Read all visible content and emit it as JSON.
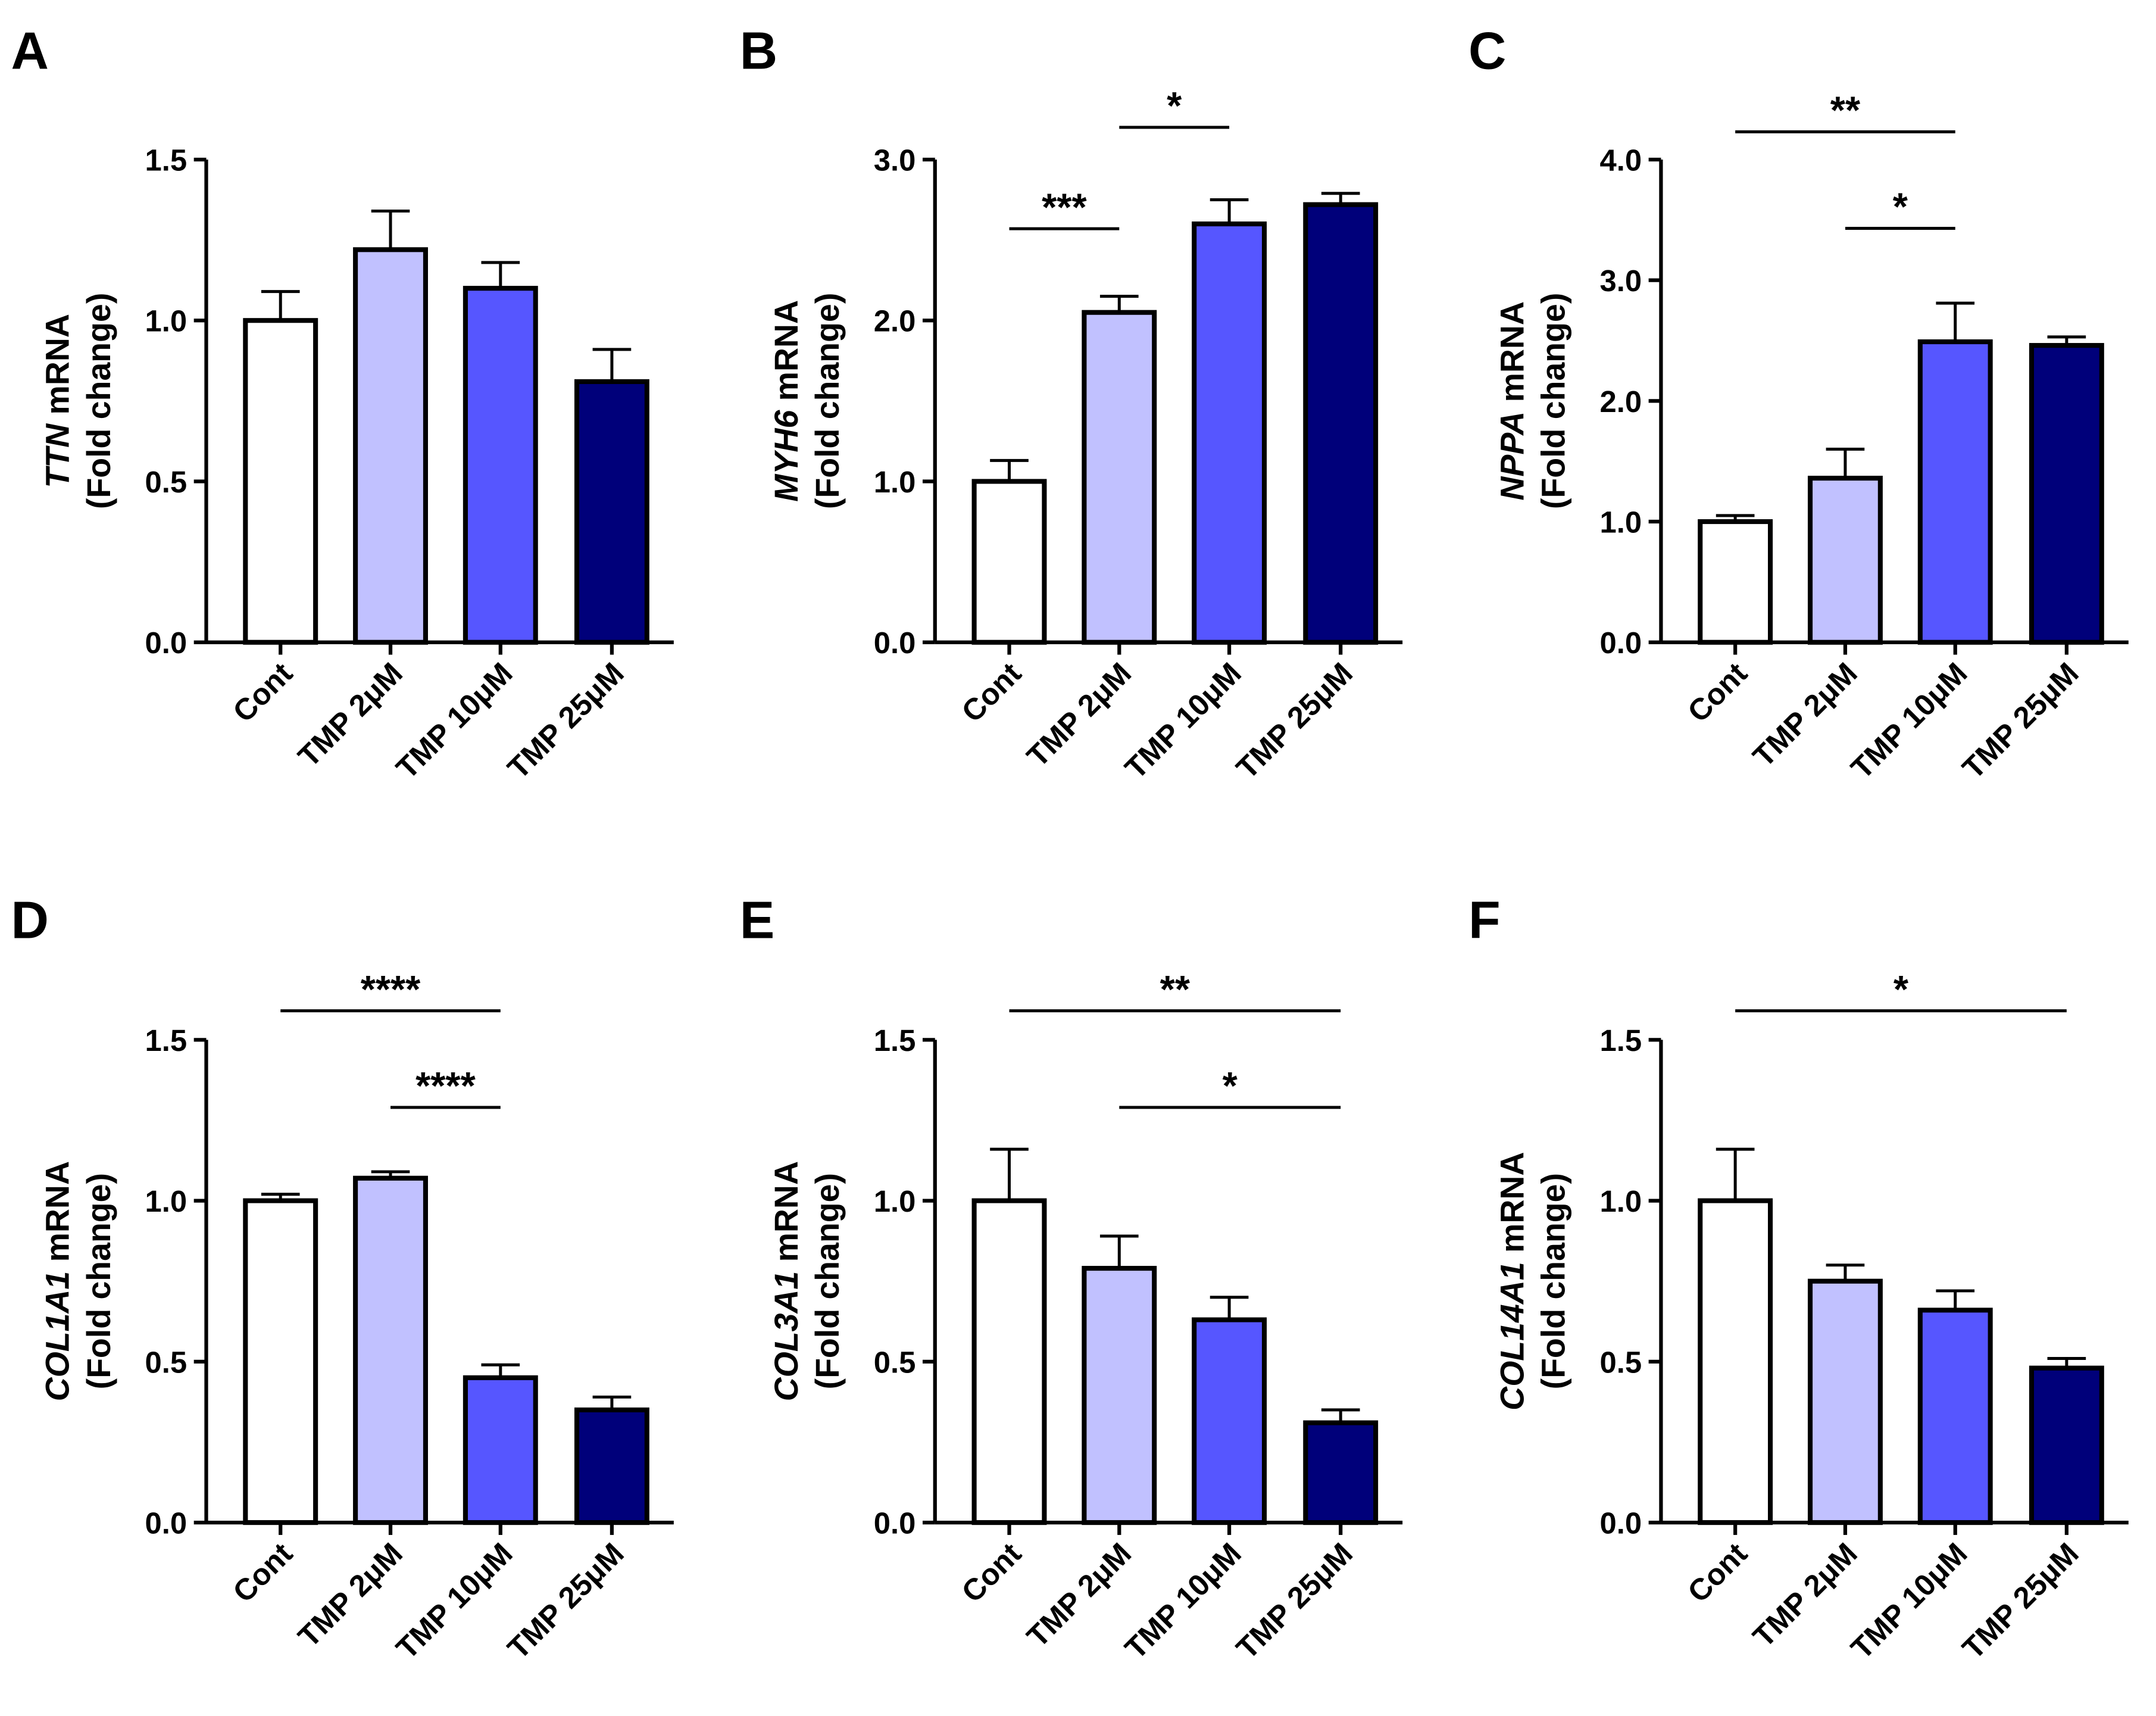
{
  "chart_data": [
    {
      "type": "bar",
      "panel_label": "A",
      "categories": [
        "Cont",
        "TMP 2μM",
        "TMP 10μM",
        "TMP 25μM"
      ],
      "values": [
        1.0,
        1.22,
        1.1,
        0.81
      ],
      "errors": [
        0.09,
        0.12,
        0.08,
        0.1
      ],
      "ylabel_gene": "TTN",
      "ylabel_suffix": " mRNA",
      "ylabel_line2": "(Fold change)",
      "ylim": [
        0,
        1.5
      ],
      "yticks": [
        "0.0",
        "0.5",
        "1.0",
        "1.5"
      ],
      "significance": []
    },
    {
      "type": "bar",
      "panel_label": "B",
      "categories": [
        "Cont",
        "TMP 2μM",
        "TMP 10μM",
        "TMP 25μM"
      ],
      "values": [
        1.0,
        2.05,
        2.6,
        2.72
      ],
      "errors": [
        0.13,
        0.1,
        0.15,
        0.07
      ],
      "ylabel_gene": "MYH6",
      "ylabel_suffix": " mRNA",
      "ylabel_line2": "(Fold change)",
      "ylim": [
        0,
        3.0
      ],
      "yticks": [
        "0.0",
        "1.0",
        "2.0",
        "3.0"
      ],
      "significance": [
        {
          "from": 0,
          "to": 1,
          "level": 2.57,
          "label": "***"
        },
        {
          "from": 1,
          "to": 2,
          "level": 3.2,
          "label": "*"
        }
      ]
    },
    {
      "type": "bar",
      "panel_label": "C",
      "categories": [
        "Cont",
        "TMP 2μM",
        "TMP 10μM",
        "TMP 25μM"
      ],
      "values": [
        1.0,
        1.36,
        2.49,
        2.46
      ],
      "errors": [
        0.05,
        0.24,
        0.32,
        0.07
      ],
      "ylabel_gene": "NPPA",
      "ylabel_suffix": " mRNA",
      "ylabel_line2": "(Fold change)",
      "ylim": [
        0,
        4.0
      ],
      "yticks": [
        "0.0",
        "1.0",
        "2.0",
        "3.0",
        "4.0"
      ],
      "significance": [
        {
          "from": 0,
          "to": 2,
          "level": 4.23,
          "label": "**"
        },
        {
          "from": 1,
          "to": 2,
          "level": 3.43,
          "label": "*"
        }
      ]
    },
    {
      "type": "bar",
      "panel_label": "D",
      "categories": [
        "Cont",
        "TMP 2μM",
        "TMP 10μM",
        "TMP 25μM"
      ],
      "values": [
        1.0,
        1.07,
        0.45,
        0.35
      ],
      "errors": [
        0.02,
        0.02,
        0.04,
        0.04
      ],
      "ylabel_gene": "COL1A1",
      "ylabel_suffix": " mRNA",
      "ylabel_line2": "(Fold change)",
      "ylim": [
        0,
        1.5
      ],
      "yticks": [
        "0.0",
        "0.5",
        "1.0",
        "1.5"
      ],
      "significance": [
        {
          "from": 0,
          "to": 2,
          "level": 1.59,
          "label": "****"
        },
        {
          "from": 1,
          "to": 2,
          "level": 1.29,
          "label": "****"
        }
      ]
    },
    {
      "type": "bar",
      "panel_label": "E",
      "categories": [
        "Cont",
        "TMP 2μM",
        "TMP 10μM",
        "TMP 25μM"
      ],
      "values": [
        1.0,
        0.79,
        0.63,
        0.31
      ],
      "errors": [
        0.16,
        0.1,
        0.07,
        0.04
      ],
      "ylabel_gene": "COL3A1",
      "ylabel_suffix": " mRNA",
      "ylabel_line2": "(Fold change)",
      "ylim": [
        0,
        1.5
      ],
      "yticks": [
        "0.0",
        "0.5",
        "1.0",
        "1.5"
      ],
      "significance": [
        {
          "from": 0,
          "to": 3,
          "level": 1.59,
          "label": "**"
        },
        {
          "from": 1,
          "to": 3,
          "level": 1.29,
          "label": "*"
        }
      ]
    },
    {
      "type": "bar",
      "panel_label": "F",
      "categories": [
        "Cont",
        "TMP 2μM",
        "TMP 10μM",
        "TMP 25μM"
      ],
      "values": [
        1.0,
        0.75,
        0.66,
        0.48
      ],
      "errors": [
        0.16,
        0.05,
        0.06,
        0.03
      ],
      "ylabel_gene": "COL14A1",
      "ylabel_suffix": " mRNA",
      "ylabel_line2": "(Fold change)",
      "ylim": [
        0,
        1.5
      ],
      "yticks": [
        "0.0",
        "0.5",
        "1.0",
        "1.5"
      ],
      "significance": [
        {
          "from": 0,
          "to": 3,
          "level": 1.59,
          "label": "*"
        }
      ]
    }
  ],
  "colors": {
    "bar_fills": [
      "#ffffff",
      "#c1c1ff",
      "#5656ff",
      "#00007a"
    ],
    "stroke": "#000000"
  }
}
